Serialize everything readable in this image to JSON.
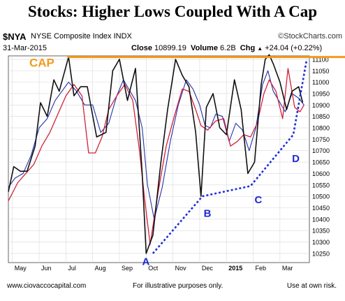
{
  "title": "Stocks:  Higher Lows Coupled With A Cap",
  "header": {
    "symbol": "$NYA",
    "index_name": "NYSE Composite Index  INDX",
    "source": "©StockCharts.com",
    "date": "31-Mar-2015",
    "close_label": "Close",
    "close_value": "10899.19",
    "volume_label": "Volume",
    "volume_value": "6.2B",
    "change_label": "Chg",
    "change_value": "+24.04 (+0.22%)",
    "change_arrow": "▲"
  },
  "footer": {
    "left": "www.ciovaccocapital.com",
    "middle": "For illustrative purposes only.",
    "right": "Use at own risk."
  },
  "colors": {
    "cap_line": "#f29a1c",
    "trend_line": "#1f2fd6",
    "price": "#111111",
    "ma_blue": "#2233a8",
    "ma_red": "#d0213b",
    "annotation": "#1a2bd0",
    "cap_label": "#f29a1c",
    "grid": "#d8d8d8"
  },
  "chart_data": {
    "type": "line",
    "ylim": [
      10210,
      11115
    ],
    "yticks": [
      10250,
      10300,
      10350,
      10400,
      10450,
      10500,
      10550,
      10600,
      10650,
      10700,
      10750,
      10800,
      10850,
      10900,
      10950,
      11000,
      11050,
      11100
    ],
    "xticks": [
      {
        "label": "May",
        "t": 0
      },
      {
        "label": "Jun",
        "t": 1
      },
      {
        "label": "Jul",
        "t": 2
      },
      {
        "label": "Aug",
        "t": 3
      },
      {
        "label": "Sep",
        "t": 4
      },
      {
        "label": "Oct",
        "t": 5
      },
      {
        "label": "Nov",
        "t": 6
      },
      {
        "label": "Dec",
        "t": 7
      },
      {
        "label": "2015",
        "t": 8,
        "bold": true
      },
      {
        "label": "Feb",
        "t": 9
      },
      {
        "label": "Mar",
        "t": 10
      }
    ],
    "x_range": [
      -0.15,
      11.1
    ],
    "series": [
      {
        "key": "price",
        "color_key": "price",
        "x": [
          -0.15,
          0.05,
          0.3,
          0.55,
          0.85,
          1.05,
          1.3,
          1.55,
          1.75,
          2.1,
          2.3,
          2.55,
          2.8,
          3.15,
          3.5,
          3.75,
          4.0,
          4.3,
          4.6,
          4.85,
          5.0,
          5.25,
          5.55,
          5.8,
          6.1,
          6.35,
          6.6,
          6.85,
          7.05,
          7.25,
          7.5,
          7.75,
          8.0,
          8.3,
          8.55,
          8.8,
          9.05,
          9.3,
          9.45,
          9.6,
          9.75,
          10.0,
          10.25,
          10.45,
          10.7,
          10.85
        ],
        "y": [
          10520,
          10630,
          10610,
          10610,
          10720,
          10910,
          10850,
          11010,
          10960,
          11110,
          10940,
          10980,
          10980,
          10760,
          10780,
          11050,
          11100,
          10920,
          11060,
          10600,
          10250,
          10330,
          10650,
          10880,
          11100,
          11030,
          10980,
          10780,
          10500,
          10890,
          10950,
          10800,
          10770,
          11010,
          10880,
          10600,
          10650,
          10990,
          11100,
          11120,
          11080,
          11000,
          10880,
          10960,
          10980,
          10910
        ]
      },
      {
        "key": "ma_blue",
        "color_key": "ma_blue",
        "x": [
          -0.15,
          0.1,
          0.4,
          0.7,
          1.0,
          1.3,
          1.6,
          1.85,
          2.1,
          2.4,
          2.7,
          3.0,
          3.3,
          3.6,
          3.9,
          4.15,
          4.4,
          4.6,
          4.85,
          5.05,
          5.3,
          5.6,
          5.9,
          6.2,
          6.5,
          6.75,
          7.0,
          7.2,
          7.4,
          7.6,
          7.85,
          8.1,
          8.35,
          8.6,
          8.85,
          9.1,
          9.35,
          9.55,
          9.75,
          10.0,
          10.2,
          10.45,
          10.7,
          10.9
        ],
        "y": [
          10540,
          10580,
          10600,
          10680,
          10800,
          10840,
          10920,
          10960,
          11000,
          10960,
          10900,
          10900,
          10780,
          10820,
          10940,
          11010,
          10960,
          10920,
          10800,
          10550,
          10400,
          10540,
          10740,
          10900,
          11010,
          10970,
          10900,
          10810,
          10800,
          10860,
          10850,
          10740,
          10820,
          10790,
          10700,
          10800,
          10990,
          11050,
          10960,
          10910,
          10870,
          10950,
          10930,
          10900
        ]
      },
      {
        "key": "ma_red",
        "color_key": "ma_red",
        "x": [
          -0.15,
          0.2,
          0.5,
          0.8,
          1.1,
          1.4,
          1.7,
          2.0,
          2.3,
          2.6,
          2.85,
          3.1,
          3.35,
          3.6,
          3.9,
          4.2,
          4.5,
          4.75,
          4.95,
          5.15,
          5.45,
          5.75,
          6.05,
          6.35,
          6.6,
          6.85,
          7.05,
          7.3,
          7.6,
          7.9,
          8.15,
          8.4,
          8.65,
          8.9,
          9.15,
          9.4,
          9.6,
          9.85,
          10.1,
          10.3,
          10.55,
          10.75,
          10.9
        ],
        "y": [
          10480,
          10560,
          10600,
          10640,
          10720,
          10780,
          10860,
          10940,
          10990,
          10940,
          10690,
          10690,
          10760,
          10880,
          10940,
          10990,
          10920,
          10700,
          10480,
          10290,
          10520,
          10720,
          10850,
          10970,
          10960,
          10880,
          10810,
          10790,
          10830,
          10840,
          10720,
          10740,
          10770,
          10760,
          10820,
          10950,
          11010,
          10960,
          10840,
          11060,
          10890,
          10870,
          10900
        ]
      }
    ],
    "cap": {
      "y": 11110,
      "x_start": 2.05,
      "label": "CAP"
    },
    "trendline": {
      "x": [
        5.25,
        7.1,
        8.9,
        10.5,
        11.0
      ],
      "y": [
        10250,
        10500,
        10545,
        10770,
        11100
      ]
    },
    "annotations": [
      {
        "label": "A",
        "x": 4.85,
        "y": 10200
      },
      {
        "label": "B",
        "x": 7.15,
        "y": 10410
      },
      {
        "label": "C",
        "x": 9.05,
        "y": 10470
      },
      {
        "label": "D",
        "x": 10.45,
        "y": 10650
      }
    ]
  }
}
